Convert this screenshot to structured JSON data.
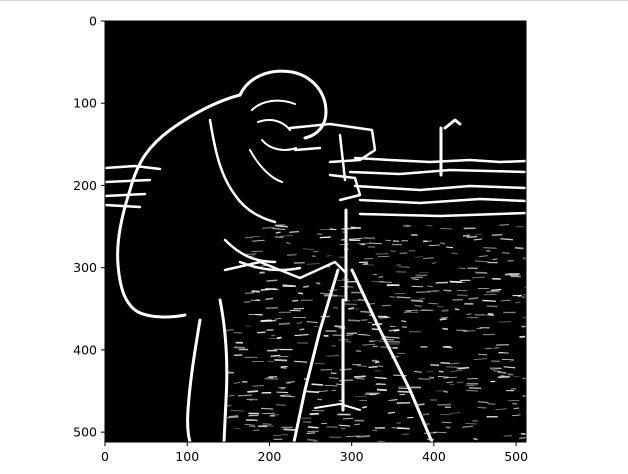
{
  "figure": {
    "background": "#ffffff",
    "image_kind": "edge-detected grayscale photograph of a cameraman with a tripod camera",
    "image_colors": {
      "background": "#000000",
      "edges": "#ffffff"
    }
  },
  "chart_data": {
    "type": "heatmap",
    "title": "",
    "xlabel": "",
    "ylabel": "",
    "xlim": [
      0,
      512
    ],
    "ylim": [
      512,
      0
    ],
    "y_inverted": true,
    "grid": false,
    "legend": "none",
    "x_ticks": [
      0,
      100,
      200,
      300,
      400,
      500
    ],
    "y_ticks": [
      0,
      100,
      200,
      300,
      400,
      500
    ],
    "x_tick_labels": [
      "0",
      "100",
      "200",
      "300",
      "400",
      "500"
    ],
    "y_tick_labels": [
      "0",
      "100",
      "200",
      "300",
      "400",
      "500"
    ]
  }
}
